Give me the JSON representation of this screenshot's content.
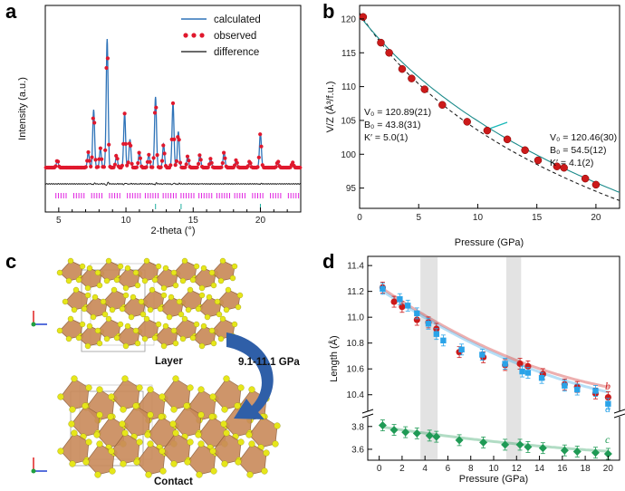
{
  "panels": {
    "a": "a",
    "b": "b",
    "c": "c",
    "d": "d"
  },
  "colors": {
    "calc": "#2e73b8",
    "obs": "#e0182d",
    "diff": "#111111",
    "tick": "#e020e0",
    "red": "#cc1a1a",
    "blue": "#2aa3e8",
    "green": "#1f9a55",
    "band": "#d9d9d9",
    "arrow": "#2f5fa8",
    "poly": "#c98a5a",
    "atom": "#e6e619"
  },
  "chart_data": [
    {
      "id": "a",
      "type": "line",
      "xlabel": "2-theta (°)",
      "ylabel": "Intensity (a.u.)",
      "xlim": [
        4,
        23
      ],
      "xticks": [
        "5",
        "10",
        "15",
        "20"
      ],
      "xtick_values": [
        5,
        10,
        15,
        20
      ],
      "legend": [
        "calculated",
        "observed",
        "difference"
      ],
      "peaks": [
        {
          "x": 4.9,
          "h": 0.06
        },
        {
          "x": 7.2,
          "h": 0.12
        },
        {
          "x": 7.6,
          "h": 0.45
        },
        {
          "x": 8.1,
          "h": 0.15
        },
        {
          "x": 8.6,
          "h": 1.0
        },
        {
          "x": 9.3,
          "h": 0.1
        },
        {
          "x": 9.9,
          "h": 0.42
        },
        {
          "x": 10.3,
          "h": 0.22
        },
        {
          "x": 11.0,
          "h": 0.12
        },
        {
          "x": 11.7,
          "h": 0.1
        },
        {
          "x": 12.2,
          "h": 0.55
        },
        {
          "x": 12.8,
          "h": 0.18
        },
        {
          "x": 13.5,
          "h": 0.5
        },
        {
          "x": 13.9,
          "h": 0.28
        },
        {
          "x": 14.6,
          "h": 0.09
        },
        {
          "x": 15.5,
          "h": 0.1
        },
        {
          "x": 16.3,
          "h": 0.07
        },
        {
          "x": 17.3,
          "h": 0.12
        },
        {
          "x": 18.2,
          "h": 0.06
        },
        {
          "x": 19.2,
          "h": 0.05
        },
        {
          "x": 20.0,
          "h": 0.27
        },
        {
          "x": 21.3,
          "h": 0.05
        },
        {
          "x": 22.4,
          "h": 0.04
        }
      ],
      "marker_x": [
        12.2,
        14.1,
        20.0
      ]
    },
    {
      "id": "b",
      "type": "scatter",
      "xlabel": "Pressure (GPa)",
      "ylabel": "V/Z (Å³/f.u.)",
      "xlim": [
        0,
        22
      ],
      "ylim": [
        92,
        122
      ],
      "xticks": [
        "0",
        "5",
        "10",
        "15",
        "20"
      ],
      "xtick_values": [
        0,
        5,
        10,
        15,
        20
      ],
      "yticks": [
        "95",
        "100",
        "105",
        "110",
        "115",
        "120"
      ],
      "ytick_values": [
        95,
        100,
        105,
        110,
        115,
        120
      ],
      "points": [
        {
          "x": 0.3,
          "y": 120.3
        },
        {
          "x": 1.8,
          "y": 116.5
        },
        {
          "x": 2.5,
          "y": 115.0
        },
        {
          "x": 3.6,
          "y": 112.6
        },
        {
          "x": 4.4,
          "y": 111.2
        },
        {
          "x": 5.5,
          "y": 109.6
        },
        {
          "x": 7.0,
          "y": 107.3
        },
        {
          "x": 9.1,
          "y": 104.8
        },
        {
          "x": 10.8,
          "y": 103.5
        },
        {
          "x": 12.5,
          "y": 102.2
        },
        {
          "x": 14.0,
          "y": 100.6
        },
        {
          "x": 15.1,
          "y": 99.1
        },
        {
          "x": 16.7,
          "y": 98.2
        },
        {
          "x": 17.3,
          "y": 98.0
        },
        {
          "x": 19.1,
          "y": 96.4
        },
        {
          "x": 20.0,
          "y": 95.5
        }
      ],
      "fit_low": {
        "v0_label": "V₀ = 120.89(21)",
        "b0_label": "B₀ = 43.8(31)",
        "kp_label": "K′ = 5.0(1)"
      },
      "fit_high": {
        "v0_label": "V₀ = 120.46(30)",
        "b0_label": "B₀ = 54.5(12)",
        "kp_label": "K′ = 4.1(2)"
      }
    },
    {
      "id": "d",
      "type": "scatter",
      "xlabel": "Pressure (GPa)",
      "ylabel": "Length (Å)",
      "xlim": [
        -1,
        21
      ],
      "xticks": [
        "0",
        "2",
        "4",
        "6",
        "8",
        "10",
        "12",
        "14",
        "16",
        "18",
        "20"
      ],
      "xtick_values": [
        0,
        2,
        4,
        6,
        8,
        10,
        12,
        14,
        16,
        18,
        20
      ],
      "yticks_upper": [
        "10.4",
        "10.6",
        "10.8",
        "11.0",
        "11.2",
        "11.4"
      ],
      "ytick_values_upper": [
        10.4,
        10.6,
        10.8,
        11.0,
        11.2,
        11.4
      ],
      "yticks_lower": [
        "3.6",
        "3.8"
      ],
      "ytick_values_lower": [
        3.6,
        3.8
      ],
      "bands": [
        [
          3.6,
          5.1
        ],
        [
          11.1,
          12.4
        ]
      ],
      "series": [
        {
          "name": "b",
          "marker": "circle",
          "points": [
            {
              "x": 0.3,
              "y": 11.23
            },
            {
              "x": 1.3,
              "y": 11.12
            },
            {
              "x": 2.0,
              "y": 11.08
            },
            {
              "x": 3.3,
              "y": 10.98
            },
            {
              "x": 4.3,
              "y": 10.96
            },
            {
              "x": 5.0,
              "y": 10.91
            },
            {
              "x": 7.0,
              "y": 10.73
            },
            {
              "x": 9.1,
              "y": 10.69
            },
            {
              "x": 11.0,
              "y": 10.63
            },
            {
              "x": 12.3,
              "y": 10.64
            },
            {
              "x": 13.0,
              "y": 10.62
            },
            {
              "x": 14.3,
              "y": 10.56
            },
            {
              "x": 16.2,
              "y": 10.48
            },
            {
              "x": 17.3,
              "y": 10.46
            },
            {
              "x": 18.9,
              "y": 10.41
            },
            {
              "x": 20.0,
              "y": 10.38
            }
          ]
        },
        {
          "name": "a",
          "marker": "square",
          "points": [
            {
              "x": 0.3,
              "y": 11.22
            },
            {
              "x": 1.8,
              "y": 11.14
            },
            {
              "x": 2.5,
              "y": 11.09
            },
            {
              "x": 3.3,
              "y": 11.03
            },
            {
              "x": 4.3,
              "y": 10.95
            },
            {
              "x": 5.0,
              "y": 10.87
            },
            {
              "x": 5.6,
              "y": 10.82
            },
            {
              "x": 7.2,
              "y": 10.75
            },
            {
              "x": 9.0,
              "y": 10.71
            },
            {
              "x": 11.0,
              "y": 10.64
            },
            {
              "x": 12.5,
              "y": 10.58
            },
            {
              "x": 13.0,
              "y": 10.57
            },
            {
              "x": 14.2,
              "y": 10.53
            },
            {
              "x": 16.2,
              "y": 10.47
            },
            {
              "x": 17.3,
              "y": 10.44
            },
            {
              "x": 18.9,
              "y": 10.43
            },
            {
              "x": 20.0,
              "y": 10.33
            }
          ]
        },
        {
          "name": "c",
          "marker": "diamond",
          "points": [
            {
              "x": 0.3,
              "y": 3.81
            },
            {
              "x": 1.3,
              "y": 3.77
            },
            {
              "x": 2.3,
              "y": 3.75
            },
            {
              "x": 3.3,
              "y": 3.74
            },
            {
              "x": 4.4,
              "y": 3.72
            },
            {
              "x": 5.0,
              "y": 3.71
            },
            {
              "x": 7.0,
              "y": 3.68
            },
            {
              "x": 9.1,
              "y": 3.66
            },
            {
              "x": 11.0,
              "y": 3.64
            },
            {
              "x": 12.3,
              "y": 3.64
            },
            {
              "x": 13.0,
              "y": 3.62
            },
            {
              "x": 14.3,
              "y": 3.61
            },
            {
              "x": 16.2,
              "y": 3.59
            },
            {
              "x": 17.3,
              "y": 3.58
            },
            {
              "x": 18.9,
              "y": 3.57
            },
            {
              "x": 20.0,
              "y": 3.56
            }
          ]
        }
      ]
    }
  ],
  "panel_c": {
    "layer_label": "Layer",
    "contact_label": "Contact",
    "pressure_label": "9.1-11.1 GPa"
  }
}
